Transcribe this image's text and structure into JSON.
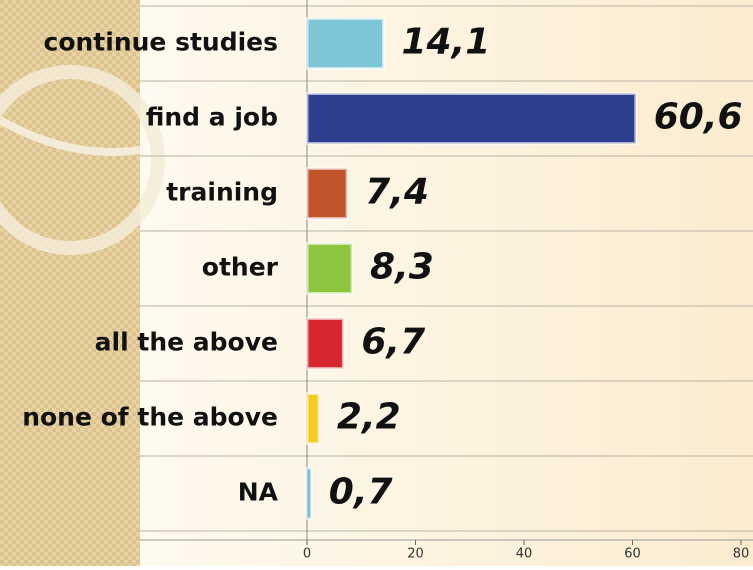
{
  "chart_data": {
    "type": "hbar",
    "categories": [
      "continue studies",
      "find a job",
      "training",
      "other",
      "all the above",
      "none of the above",
      "NA"
    ],
    "values": [
      14.1,
      60.6,
      7.4,
      8.3,
      6.7,
      2.2,
      0.7
    ],
    "value_labels": [
      "14,1",
      "60,6",
      "7,4",
      "8,3",
      "6,7",
      "2,2",
      "0,7"
    ],
    "colors": [
      "#7cc6d8",
      "#2d3e8e",
      "#c1542b",
      "#8cc63f",
      "#d8262f",
      "#f3cb19",
      "#2a9bc3"
    ],
    "xlim": [
      0,
      80
    ],
    "xticks": [
      0,
      20,
      40,
      60,
      80
    ]
  }
}
